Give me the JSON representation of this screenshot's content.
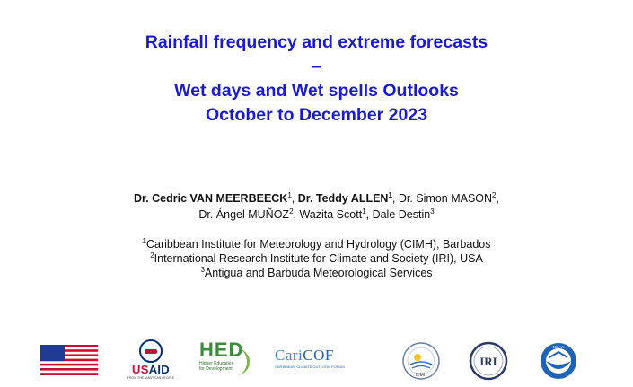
{
  "title": {
    "line1": "Rainfall frequency and extreme forecasts",
    "line2": "–",
    "line3": "Wet days and Wet spells Outlooks",
    "line4": "October to December 2023"
  },
  "authors": {
    "a1": "Dr. Cedric VAN MEERBEECK",
    "a1_sup": "1",
    "a2": "Dr. Teddy ALLEN",
    "a2_sup": "1",
    "a3": "Dr. Simon MASON",
    "a3_sup": "2",
    "a4": "Dr. Ángel MUÑOZ",
    "a4_sup": "2",
    "a5": "Wazita Scott",
    "a5_sup": "1",
    "a6": "Dale Destin",
    "a6_sup": "3"
  },
  "affiliations": [
    {
      "num": "1",
      "text": "Caribbean Institute for Meteorology and Hydrology (CIMH), Barbados"
    },
    {
      "num": "2",
      "text": "International Research Institute for Climate and Society (IRI), USA"
    },
    {
      "num": "3",
      "text": "Antigua and Barbuda Meteorological Services"
    }
  ],
  "logos": {
    "usaid": {
      "word_us": "US",
      "word_aid": "AID",
      "tagline": "FROM THE AMERICAN PEOPLE"
    },
    "hed": {
      "word": "HED",
      "sub1": "Higher Education",
      "sub2": "for Development"
    },
    "caricof": {
      "word_cari": "Cari",
      "word_cof": "COF",
      "sub": "CARIBBEAN CLIMATE OUTLOOK FORUM"
    },
    "cimh": {
      "label": "CIMH"
    },
    "iri": {
      "label": "IRI"
    },
    "noaa": {
      "label": "NOAA"
    }
  },
  "colors": {
    "title": "#1a1ad4",
    "text": "#111111"
  }
}
